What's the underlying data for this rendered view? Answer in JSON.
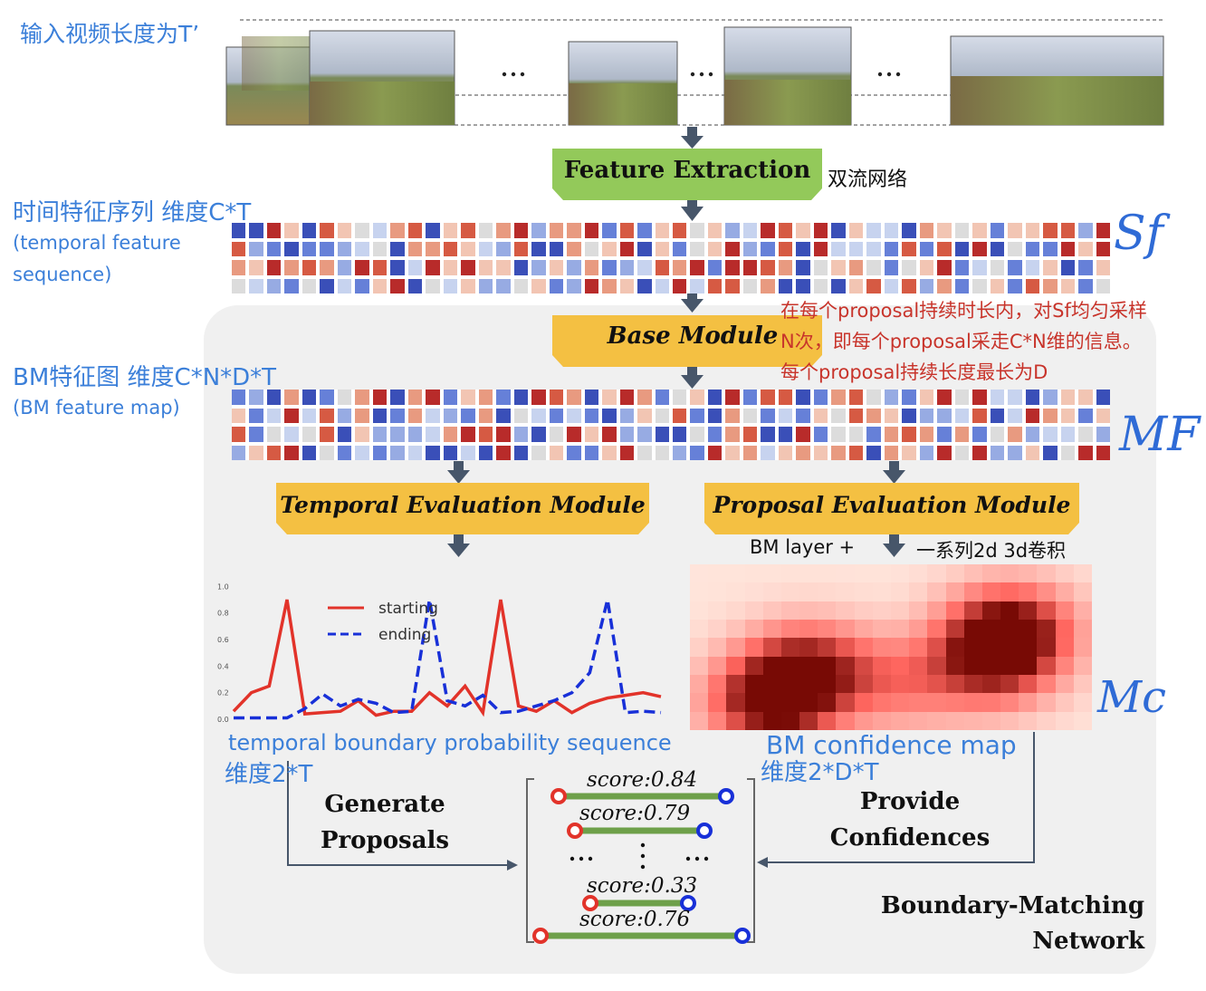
{
  "labels": {
    "input_video": "输入视频长度为T’",
    "two_stream": "双流网络",
    "temporal_seq_cn": "时间特征序列 维度C*T",
    "temporal_seq_en_1": "(temporal feature",
    "temporal_seq_en_2": "sequence)",
    "bm_map_cn": "BM特征图 维度C*N*D*T",
    "bm_map_en": "(BM feature map)",
    "sampling_note_1": "在每个proposal持续时长内，对Sf均匀采样",
    "sampling_note_2": "N次，即每个proposal采走C*N维的信息。",
    "sampling_note_3": "每个proposal持续长度最长为D",
    "bm_layer_left": "BM layer +",
    "bm_layer_right": "一系列2d 3d卷积",
    "tbps_en": "temporal boundary probability sequence",
    "tbps_dim": "维度2*T",
    "bmcm_en": "BM confidence map",
    "bmcm_dim": "维度2*D*T",
    "hand_sf": "Sf",
    "hand_mf": "MF",
    "hand_mc": "Mc"
  },
  "modules": {
    "feature_extraction": "Feature Extraction",
    "base_module": "Base Module",
    "tem": "Temporal Evaluation Module",
    "pem": "Proposal Evaluation Module"
  },
  "flow": {
    "generate_1": "Generate",
    "generate_2": "Proposals",
    "provide_1": "Provide",
    "provide_2": "Confidences",
    "network_1": "Boundary-Matching",
    "network_2": "Network",
    "ellipsis": "···"
  },
  "proposals": [
    "score:0.84",
    "score:0.79",
    "score:0.33",
    "score:0.76"
  ],
  "colors": {
    "green_module": "#93c95a",
    "yellow_module": "#f4c042",
    "arrow": "#47566a",
    "starting": "#e2332a",
    "ending": "#1830d8",
    "bar": "#6ea04a"
  },
  "chart_data": {
    "type": "line",
    "x": [
      0,
      1,
      2,
      3,
      4,
      5,
      6,
      7,
      8,
      9,
      10,
      11,
      12,
      13,
      14,
      15,
      16,
      17,
      18,
      19,
      20,
      21,
      22,
      23,
      24
    ],
    "series": [
      {
        "name": "starting",
        "values": [
          0.06,
          0.2,
          0.25,
          0.9,
          0.04,
          0.05,
          0.06,
          0.14,
          0.03,
          0.06,
          0.06,
          0.2,
          0.1,
          0.25,
          0.05,
          0.9,
          0.1,
          0.06,
          0.14,
          0.05,
          0.12,
          0.16,
          0.18,
          0.2,
          0.17
        ]
      },
      {
        "name": "ending",
        "values": [
          0.01,
          0.01,
          0.01,
          0.01,
          0.08,
          0.19,
          0.1,
          0.15,
          0.12,
          0.05,
          0.06,
          0.9,
          0.14,
          0.1,
          0.18,
          0.05,
          0.06,
          0.1,
          0.14,
          0.2,
          0.35,
          0.9,
          0.05,
          0.06,
          0.05
        ]
      }
    ],
    "yticks": [
      "0.0",
      "0.2",
      "0.4",
      "0.6",
      "0.8",
      "1.0"
    ],
    "ylim": [
      0,
      1.05
    ],
    "legend": "top-center",
    "grid": false
  }
}
